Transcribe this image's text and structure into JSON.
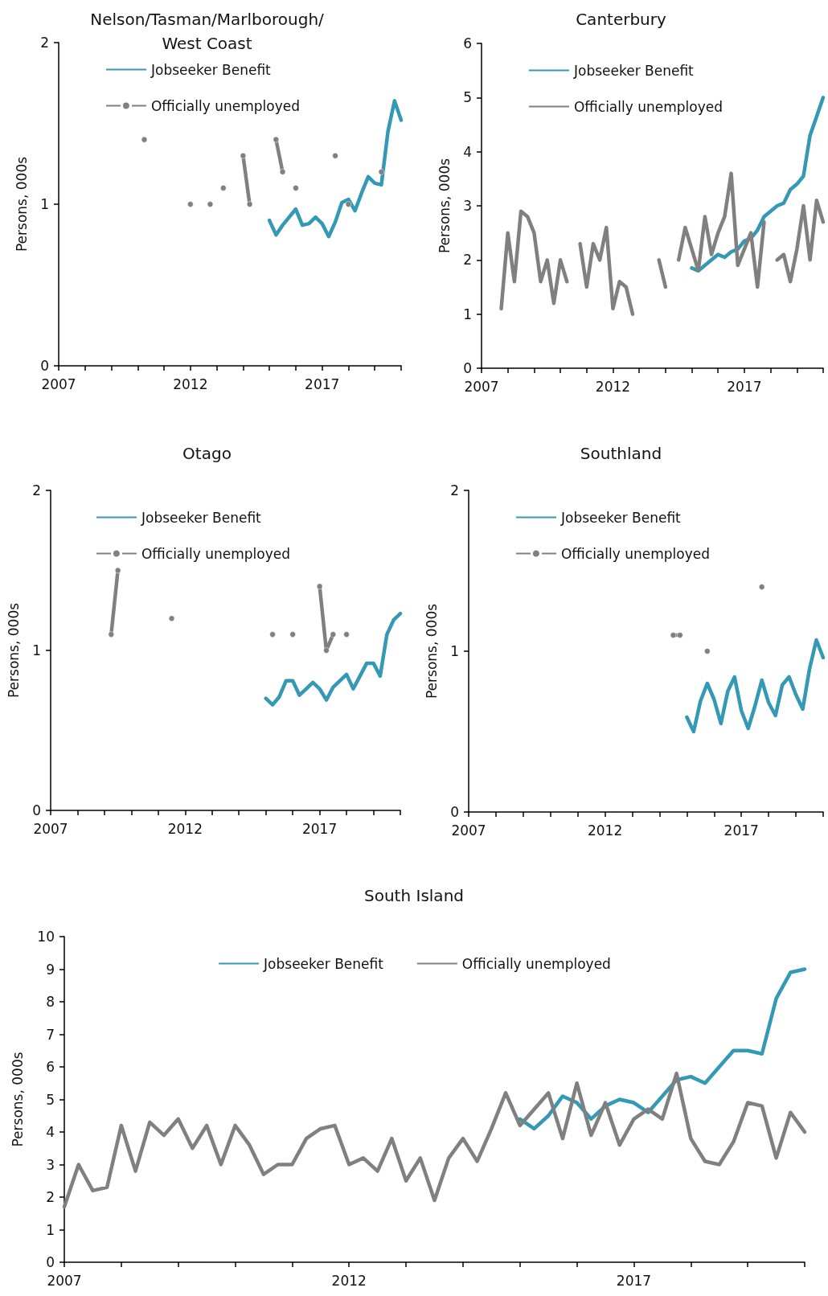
{
  "chart_data": [
    {
      "type": "line",
      "title": "Nelson/Tasman/Marlborough/West Coast",
      "ylabel": "Persons, 000s",
      "legend": "top left",
      "xlim": [
        2007,
        2020
      ],
      "ylim": [
        0,
        2
      ],
      "yticks": [
        0,
        1,
        2
      ],
      "xticks": [
        2007,
        {
          "value": 2008,
          "label": null
        },
        {
          "value": 2009,
          "label": null
        },
        {
          "value": 2010,
          "label": null
        },
        {
          "value": 2011,
          "label": null
        },
        2012,
        {
          "value": 2013,
          "label": null
        },
        {
          "value": 2014,
          "label": null
        },
        {
          "value": 2015,
          "label": null
        },
        {
          "value": 2016,
          "label": null
        },
        2017,
        {
          "value": 2018,
          "label": null
        },
        {
          "value": 2019,
          "label": null
        },
        {
          "value": 2020,
          "label": null
        }
      ],
      "series": [
        {
          "name": "Jobseeker Benefit",
          "color": "#3399b5",
          "x": [
            2015,
            2015.25,
            2015.5,
            2015.75,
            2016,
            2016.25,
            2016.5,
            2016.75,
            2017,
            2017.25,
            2017.5,
            2017.75,
            2018,
            2018.25,
            2018.5,
            2018.75,
            2019,
            2019.25,
            2019.5,
            2019.75,
            2020
          ],
          "values": [
            0.9,
            0.81,
            0.87,
            0.92,
            0.97,
            0.87,
            0.88,
            0.92,
            0.88,
            0.8,
            0.89,
            1.01,
            1.03,
            0.96,
            1.07,
            1.17,
            1.13,
            1.12,
            1.45,
            1.64,
            1.52
          ]
        },
        {
          "name": "Officially unemployed",
          "color": "#808080",
          "marker": "circle",
          "x": [
            2010.25,
            2010.5,
            2010.75,
            2011,
            2011.25,
            2011.5,
            2011.75,
            2012,
            2012.25,
            2012.5,
            2012.75,
            2013,
            2013.25,
            2013.5,
            2013.75,
            2014,
            2014.25,
            2014.5,
            2014.75,
            2015,
            2015.25,
            2015.5,
            2015.75,
            2016,
            2016.25,
            2016.5,
            2016.75,
            2017,
            2017.25,
            2017.5,
            2017.75,
            2018,
            2018.25,
            2018.5,
            2018.75,
            2019,
            2019.25
          ],
          "values": [
            1.4,
            null,
            null,
            null,
            null,
            null,
            null,
            1.0,
            null,
            null,
            1.0,
            null,
            1.1,
            null,
            null,
            1.3,
            1.0,
            null,
            null,
            null,
            1.4,
            1.2,
            null,
            1.1,
            null,
            null,
            null,
            null,
            null,
            1.3,
            null,
            1.0,
            null,
            null,
            null,
            null,
            1.2
          ]
        }
      ]
    },
    {
      "type": "line",
      "title": "Canterbury",
      "ylabel": "Persons, 000s",
      "legend": "top left",
      "xlim": [
        2007,
        2020
      ],
      "ylim": [
        0,
        6
      ],
      "yticks": [
        0,
        1,
        2,
        3,
        4,
        5,
        6
      ],
      "xticks": [
        2007,
        {
          "value": 2008,
          "label": null
        },
        {
          "value": 2009,
          "label": null
        },
        {
          "value": 2010,
          "label": null
        },
        {
          "value": 2011,
          "label": null
        },
        2012,
        {
          "value": 2013,
          "label": null
        },
        {
          "value": 2014,
          "label": null
        },
        {
          "value": 2015,
          "label": null
        },
        {
          "value": 2016,
          "label": null
        },
        2017,
        {
          "value": 2018,
          "label": null
        },
        {
          "value": 2019,
          "label": null
        },
        {
          "value": 2020,
          "label": null
        }
      ],
      "series": [
        {
          "name": "Jobseeker Benefit",
          "color": "#3399b5",
          "x": [
            2015,
            2015.25,
            2015.5,
            2015.75,
            2016,
            2016.25,
            2016.5,
            2016.75,
            2017,
            2017.25,
            2017.5,
            2017.75,
            2018,
            2018.25,
            2018.5,
            2018.75,
            2019,
            2019.25,
            2019.5,
            2019.75,
            2020
          ],
          "values": [
            1.85,
            1.8,
            1.9,
            2.0,
            2.1,
            2.05,
            2.15,
            2.2,
            2.35,
            2.4,
            2.55,
            2.8,
            2.9,
            3.0,
            3.05,
            3.3,
            3.4,
            3.55,
            4.3,
            4.65,
            5.0
          ]
        },
        {
          "name": "Officially unemployed",
          "color": "#808080",
          "x": [
            2007.75,
            2008,
            2008.25,
            2008.5,
            2008.75,
            2009,
            2009.25,
            2009.5,
            2009.75,
            2010,
            2010.25,
            2010.5,
            2010.75,
            2011,
            2011.25,
            2011.5,
            2011.75,
            2012,
            2012.25,
            2012.5,
            2012.75,
            2013,
            2013.25,
            2013.5,
            2013.75,
            2014,
            2014.25,
            2014.5,
            2014.75,
            2015,
            2015.25,
            2015.5,
            2015.75,
            2016,
            2016.25,
            2016.5,
            2016.75,
            2017,
            2017.25,
            2017.5,
            2017.75,
            2018,
            2018.25,
            2018.5,
            2018.75,
            2019,
            2019.25,
            2019.5,
            2019.75,
            2020
          ],
          "values": [
            1.1,
            2.5,
            1.6,
            2.9,
            2.8,
            2.5,
            1.6,
            2.0,
            1.2,
            2.0,
            1.6,
            null,
            2.3,
            1.5,
            2.3,
            2.0,
            2.6,
            1.1,
            1.6,
            1.5,
            1.0,
            null,
            null,
            null,
            2.0,
            1.5,
            null,
            2.0,
            2.6,
            2.2,
            1.8,
            2.8,
            2.1,
            2.5,
            2.8,
            3.6,
            1.9,
            2.2,
            2.5,
            1.5,
            2.7,
            null,
            2.0,
            2.1,
            1.6,
            2.2,
            3.0,
            2.0,
            3.1,
            2.7
          ]
        }
      ]
    },
    {
      "type": "line",
      "title": "Otago",
      "ylabel": "Persons, 000s",
      "legend": "top left",
      "xlim": [
        2007,
        2020
      ],
      "ylim": [
        0,
        2
      ],
      "yticks": [
        0,
        1,
        2
      ],
      "xticks": [
        2007,
        {
          "value": 2008,
          "label": null
        },
        {
          "value": 2009,
          "label": null
        },
        {
          "value": 2010,
          "label": null
        },
        {
          "value": 2011,
          "label": null
        },
        2012,
        {
          "value": 2013,
          "label": null
        },
        {
          "value": 2014,
          "label": null
        },
        {
          "value": 2015,
          "label": null
        },
        {
          "value": 2016,
          "label": null
        },
        2017,
        {
          "value": 2018,
          "label": null
        },
        {
          "value": 2019,
          "label": null
        },
        {
          "value": 2020,
          "label": null
        }
      ],
      "series": [
        {
          "name": "Jobseeker Benefit",
          "color": "#3399b5",
          "x": [
            2015,
            2015.25,
            2015.5,
            2015.75,
            2016,
            2016.25,
            2016.5,
            2016.75,
            2017,
            2017.25,
            2017.5,
            2017.75,
            2018,
            2018.25,
            2018.5,
            2018.75,
            2019,
            2019.25,
            2019.5,
            2019.75,
            2020
          ],
          "values": [
            0.7,
            0.66,
            0.71,
            0.81,
            0.81,
            0.72,
            0.76,
            0.8,
            0.76,
            0.69,
            0.77,
            0.81,
            0.85,
            0.76,
            0.84,
            0.92,
            0.92,
            0.84,
            1.1,
            1.19,
            1.23
          ]
        },
        {
          "name": "Officially unemployed",
          "color": "#808080",
          "marker": "circle",
          "x": [
            2009.25,
            2009.5,
            2009.75,
            2010,
            2010.25,
            2010.5,
            2010.75,
            2011,
            2011.25,
            2011.5,
            2011.75,
            2012,
            2012.25,
            2012.5,
            2012.75,
            2013,
            2013.25,
            2013.5,
            2013.75,
            2014,
            2014.25,
            2014.5,
            2014.75,
            2015,
            2015.25,
            2015.5,
            2015.75,
            2016,
            2016.25,
            2016.5,
            2016.75,
            2017,
            2017.25,
            2017.5,
            2017.75,
            2018
          ],
          "values": [
            1.1,
            1.5,
            null,
            null,
            null,
            null,
            null,
            null,
            null,
            1.2,
            null,
            null,
            null,
            null,
            null,
            null,
            null,
            null,
            null,
            null,
            null,
            null,
            null,
            null,
            1.1,
            null,
            null,
            1.1,
            null,
            null,
            null,
            1.4,
            1.0,
            1.1,
            null,
            1.1
          ]
        }
      ]
    },
    {
      "type": "line",
      "title": "Southland",
      "ylabel": "Persons, 000s",
      "legend": "top left",
      "xlim": [
        2007,
        2020
      ],
      "ylim": [
        0,
        2
      ],
      "yticks": [
        0,
        1,
        2
      ],
      "xticks": [
        2007,
        {
          "value": 2008,
          "label": null
        },
        {
          "value": 2009,
          "label": null
        },
        {
          "value": 2010,
          "label": null
        },
        {
          "value": 2011,
          "label": null
        },
        2012,
        {
          "value": 2013,
          "label": null
        },
        {
          "value": 2014,
          "label": null
        },
        {
          "value": 2015,
          "label": null
        },
        {
          "value": 2016,
          "label": null
        },
        2017,
        {
          "value": 2018,
          "label": null
        },
        {
          "value": 2019,
          "label": null
        },
        {
          "value": 2020,
          "label": null
        }
      ],
      "series": [
        {
          "name": "Jobseeker Benefit",
          "color": "#3399b5",
          "x": [
            2015,
            2015.25,
            2015.5,
            2015.75,
            2016,
            2016.25,
            2016.5,
            2016.75,
            2017,
            2017.25,
            2017.5,
            2017.75,
            2018,
            2018.25,
            2018.5,
            2018.75,
            2019,
            2019.25,
            2019.5,
            2019.75,
            2020
          ],
          "values": [
            0.59,
            0.5,
            0.69,
            0.8,
            0.7,
            0.55,
            0.75,
            0.84,
            0.63,
            0.52,
            0.66,
            0.82,
            0.68,
            0.6,
            0.79,
            0.84,
            0.73,
            0.64,
            0.89,
            1.07,
            0.96
          ]
        },
        {
          "name": "Officially unemployed",
          "color": "#808080",
          "marker": "circle",
          "x": [
            2014.5,
            2014.75,
            2015,
            2015.25,
            2015.5,
            2015.75,
            2016,
            2016.25,
            2016.5,
            2016.75,
            2017,
            2017.25,
            2017.5,
            2017.75
          ],
          "values": [
            1.1,
            1.1,
            null,
            null,
            null,
            1.0,
            null,
            null,
            null,
            null,
            null,
            null,
            null,
            1.4
          ]
        }
      ]
    },
    {
      "type": "line",
      "title": "South Island",
      "ylabel": "Persons, 000s",
      "legend": "top",
      "xlim": [
        2007,
        2020
      ],
      "ylim": [
        0,
        10
      ],
      "yticks": [
        0,
        1,
        2,
        3,
        4,
        5,
        6,
        7,
        8,
        9,
        10
      ],
      "xticks": [
        2007,
        {
          "value": 2008,
          "label": null
        },
        {
          "value": 2009,
          "label": null
        },
        {
          "value": 2010,
          "label": null
        },
        {
          "value": 2011,
          "label": null
        },
        2012,
        {
          "value": 2013,
          "label": null
        },
        {
          "value": 2014,
          "label": null
        },
        {
          "value": 2015,
          "label": null
        },
        {
          "value": 2016,
          "label": null
        },
        2017,
        {
          "value": 2018,
          "label": null
        },
        {
          "value": 2019,
          "label": null
        },
        {
          "value": 2020,
          "label": null
        }
      ],
      "series": [
        {
          "name": "Jobseeker Benefit",
          "color": "#3399b5",
          "x": [
            2015,
            2015.25,
            2015.5,
            2015.75,
            2016,
            2016.25,
            2016.5,
            2016.75,
            2017,
            2017.25,
            2017.5,
            2017.75,
            2018,
            2018.25,
            2018.5,
            2018.75,
            2019,
            2019.25,
            2019.5,
            2019.75,
            2020
          ],
          "values": [
            4.4,
            4.1,
            4.5,
            5.1,
            4.9,
            4.4,
            4.8,
            5.0,
            4.9,
            4.6,
            5.1,
            5.6,
            5.7,
            5.5,
            6.0,
            6.5,
            6.5,
            6.4,
            8.1,
            8.9,
            9.0
          ]
        },
        {
          "name": "Officially unemployed",
          "color": "#808080",
          "x": [
            2007,
            2007.25,
            2007.5,
            2007.75,
            2008,
            2008.25,
            2008.5,
            2008.75,
            2009,
            2009.25,
            2009.5,
            2009.75,
            2010,
            2010.25,
            2010.5,
            2010.75,
            2011,
            2011.25,
            2011.5,
            2011.75,
            2012,
            2012.25,
            2012.5,
            2012.75,
            2013,
            2013.25,
            2013.5,
            2013.75,
            2014,
            2014.25,
            2014.5,
            2014.75,
            2015,
            2015.25,
            2015.5,
            2015.75,
            2016,
            2016.25,
            2016.5,
            2016.75,
            2017,
            2017.25,
            2017.5,
            2017.75,
            2018,
            2018.25,
            2018.5,
            2018.75,
            2019,
            2019.25,
            2019.5,
            2019.75,
            2020
          ],
          "values": [
            1.7,
            3.0,
            2.2,
            2.3,
            4.2,
            2.8,
            4.3,
            3.9,
            4.4,
            3.5,
            4.2,
            3.0,
            4.2,
            3.6,
            2.7,
            3.0,
            3.0,
            3.8,
            4.1,
            4.2,
            3.0,
            3.2,
            2.8,
            3.8,
            2.5,
            3.2,
            1.9,
            3.2,
            3.8,
            3.1,
            4.1,
            5.2,
            4.2,
            4.7,
            5.2,
            3.8,
            5.5,
            3.9,
            4.9,
            3.6,
            4.4,
            4.7,
            4.4,
            5.8,
            3.8,
            3.1,
            3.0,
            3.7,
            4.9,
            4.8,
            3.2,
            4.6,
            4.0
          ]
        }
      ]
    }
  ]
}
